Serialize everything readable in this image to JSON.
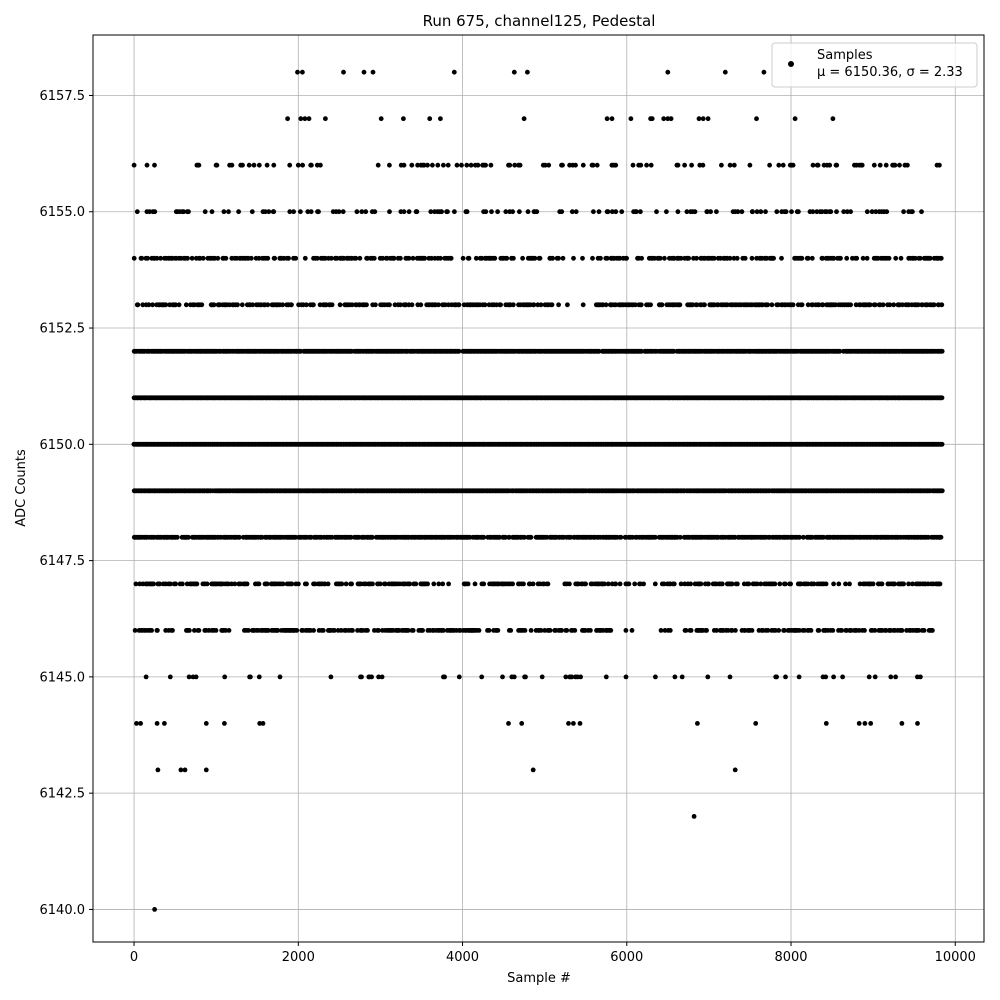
{
  "chart_data": {
    "type": "scatter",
    "title": "Run 675, channel125, Pedestal",
    "xlabel": "Sample #",
    "ylabel": "ADC Counts",
    "xlim": [
      -500,
      10350
    ],
    "ylim": [
      6139.3,
      6158.8
    ],
    "x_ticks": [
      0,
      2000,
      4000,
      6000,
      8000,
      10000
    ],
    "x_tick_labels": [
      "0",
      "2000",
      "4000",
      "6000",
      "8000",
      "10000"
    ],
    "y_ticks": [
      6140.0,
      6142.5,
      6145.0,
      6147.5,
      6150.0,
      6152.5,
      6155.0,
      6157.5
    ],
    "y_tick_labels": [
      "6140.0",
      "6142.5",
      "6145.0",
      "6147.5",
      "6150.0",
      "6152.5",
      "6155.0",
      "6157.5"
    ],
    "grid": true,
    "legend": {
      "placement": "top-right",
      "entries": [
        "Samples",
        "μ = 6150.36, σ = 2.33"
      ]
    },
    "series": [
      {
        "name": "Samples",
        "color": "#000000",
        "x_range": [
          0,
          9850
        ],
        "levels": [
          6140,
          6142,
          6143,
          6144,
          6145,
          6146,
          6147,
          6148,
          6149,
          6150,
          6151,
          6152,
          6153,
          6154,
          6155,
          6156,
          6157,
          6158
        ],
        "dense_levels": [
          6146,
          6147,
          6148,
          6149,
          6150,
          6151,
          6152,
          6153,
          6154
        ],
        "sparse_points": [
          [
            250,
            6140
          ],
          [
            6820,
            6142
          ],
          [
            290,
            6143
          ],
          [
            570,
            6143
          ],
          [
            620,
            6143
          ],
          [
            880,
            6143
          ],
          [
            4860,
            6143
          ],
          [
            7320,
            6143
          ],
          [
            30,
            6144
          ],
          [
            80,
            6144
          ],
          [
            280,
            6144
          ],
          [
            370,
            6144
          ],
          [
            880,
            6144
          ],
          [
            1100,
            6144
          ],
          [
            1530,
            6144
          ],
          [
            1570,
            6144
          ],
          [
            4560,
            6144
          ],
          [
            4720,
            6144
          ],
          [
            5290,
            6144
          ],
          [
            5350,
            6144
          ],
          [
            5430,
            6144
          ],
          [
            6860,
            6144
          ],
          [
            7570,
            6144
          ],
          [
            8430,
            6144
          ],
          [
            8830,
            6144
          ],
          [
            8900,
            6144
          ],
          [
            8970,
            6144
          ],
          [
            9350,
            6144
          ],
          [
            9540,
            6144
          ],
          [
            2030,
            6157
          ],
          [
            2080,
            6157
          ],
          [
            2130,
            6157
          ],
          [
            2330,
            6157
          ],
          [
            1870,
            6157
          ],
          [
            3010,
            6157
          ],
          [
            3280,
            6157
          ],
          [
            3600,
            6157
          ],
          [
            3730,
            6157
          ],
          [
            4750,
            6157
          ],
          [
            5760,
            6157
          ],
          [
            5820,
            6157
          ],
          [
            6050,
            6157
          ],
          [
            6290,
            6157
          ],
          [
            6310,
            6157
          ],
          [
            6450,
            6157
          ],
          [
            6500,
            6157
          ],
          [
            6540,
            6157
          ],
          [
            6880,
            6157
          ],
          [
            6930,
            6157
          ],
          [
            6990,
            6157
          ],
          [
            7580,
            6157
          ],
          [
            8050,
            6157
          ],
          [
            8510,
            6157
          ],
          [
            1990,
            6158
          ],
          [
            2050,
            6158
          ],
          [
            2550,
            6158
          ],
          [
            2800,
            6158
          ],
          [
            2910,
            6158
          ],
          [
            3900,
            6158
          ],
          [
            4630,
            6158
          ],
          [
            4790,
            6158
          ],
          [
            6500,
            6158
          ],
          [
            7200,
            6158
          ],
          [
            7670,
            6158
          ]
        ]
      }
    ]
  }
}
